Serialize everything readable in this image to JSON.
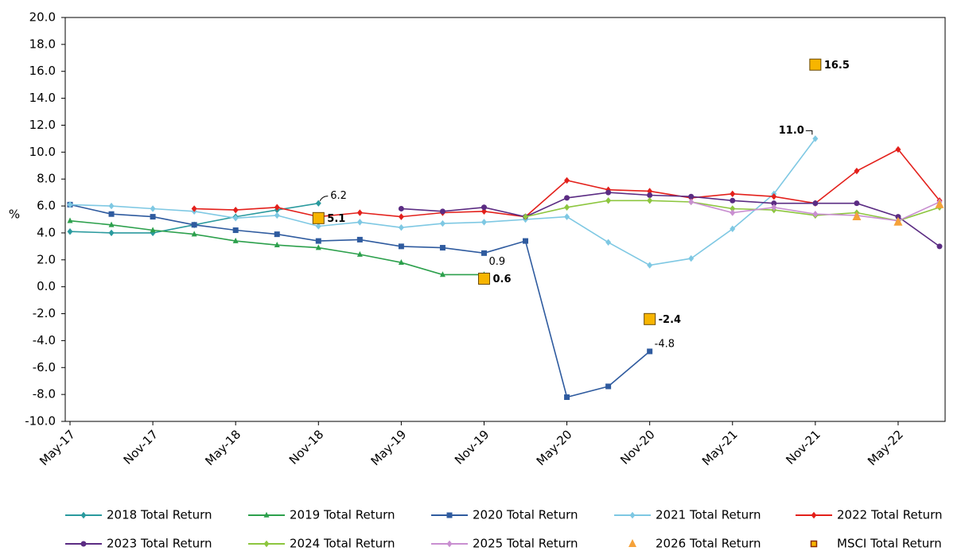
{
  "chart_data": {
    "type": "line",
    "y_label": "%",
    "categories": [
      "May-17",
      null,
      "Nov-17",
      null,
      "May-18",
      null,
      "Nov-18",
      null,
      "May-19",
      null,
      "Nov-19",
      null,
      "May-20",
      null,
      "Nov-20",
      null,
      "May-21",
      null,
      "Nov-21",
      null,
      "May-22",
      null
    ],
    "ylim": [
      -10,
      20
    ],
    "yticks": [
      {
        "value": -10,
        "label": "-10.0"
      },
      {
        "value": -8,
        "label": "-8.0"
      },
      {
        "value": -6,
        "label": "-6.0"
      },
      {
        "value": -4,
        "label": "-4.0"
      },
      {
        "value": -2,
        "label": "-2.0"
      },
      {
        "value": 0,
        "label": "0.0"
      },
      {
        "value": 2,
        "label": "2.0"
      },
      {
        "value": 4,
        "label": "4.0"
      },
      {
        "value": 6,
        "label": "6.0"
      },
      {
        "value": 8,
        "label": "8.0"
      },
      {
        "value": 10,
        "label": "10.0"
      },
      {
        "value": 12,
        "label": "12.0"
      },
      {
        "value": 14,
        "label": "14.0"
      },
      {
        "value": 16,
        "label": "16.0"
      },
      {
        "value": 18,
        "label": "18.0"
      },
      {
        "value": 20,
        "label": "20.0"
      }
    ],
    "grid": false,
    "legend": "bottom",
    "series": [
      {
        "name": "2018 Total Return",
        "color": "#2a9a9e",
        "marker": "diamond",
        "line": true,
        "values": [
          4.1,
          4.0,
          4.0,
          4.6,
          5.2,
          5.7,
          6.2,
          null,
          null,
          null,
          null,
          null,
          null,
          null,
          null,
          null,
          null,
          null,
          null,
          null,
          null,
          null
        ],
        "value_labels": [
          null,
          null,
          null,
          null,
          null,
          null,
          "6.2",
          null,
          null,
          null,
          null,
          null,
          null,
          null,
          null,
          null,
          null,
          null,
          null,
          null,
          null,
          null
        ]
      },
      {
        "name": "2019 Total Return",
        "color": "#2ca04c",
        "marker": "triangle",
        "line": true,
        "values": [
          4.9,
          4.6,
          4.2,
          3.9,
          3.4,
          3.1,
          2.9,
          2.4,
          1.8,
          0.9,
          0.9,
          null,
          null,
          null,
          null,
          null,
          null,
          null,
          null,
          null,
          null,
          null
        ],
        "value_labels": [
          null,
          null,
          null,
          null,
          null,
          null,
          null,
          null,
          null,
          null,
          "0.9",
          null,
          null,
          null,
          null,
          null,
          null,
          null,
          null,
          null,
          null,
          null
        ]
      },
      {
        "name": "2020 Total Return",
        "color": "#2f5b9f",
        "marker": "square",
        "line": true,
        "values": [
          6.1,
          5.4,
          5.2,
          4.6,
          4.2,
          3.9,
          3.4,
          3.5,
          3.0,
          2.9,
          2.5,
          3.4,
          -8.2,
          -7.4,
          -4.8,
          null,
          null,
          null,
          null,
          null,
          null,
          null
        ],
        "value_labels": [
          null,
          null,
          null,
          null,
          null,
          null,
          null,
          null,
          null,
          null,
          null,
          null,
          null,
          null,
          "-4.8",
          null,
          null,
          null,
          null,
          null,
          null,
          null
        ]
      },
      {
        "name": "2021 Total Return",
        "color": "#7ec8e3",
        "marker": "diamond",
        "line": true,
        "values": [
          6.1,
          6.0,
          5.8,
          5.6,
          5.1,
          5.3,
          4.5,
          4.8,
          4.4,
          4.7,
          4.8,
          5.0,
          5.2,
          3.3,
          1.6,
          2.1,
          4.3,
          6.9,
          11.0,
          null,
          null,
          null
        ],
        "value_labels": [
          null,
          null,
          null,
          null,
          null,
          null,
          null,
          null,
          null,
          null,
          null,
          null,
          null,
          null,
          null,
          null,
          null,
          null,
          "11.0",
          null,
          null,
          null
        ]
      },
      {
        "name": "2022 Total Return",
        "color": "#e3201b",
        "marker": "diamond",
        "line": true,
        "values": [
          null,
          null,
          null,
          5.8,
          5.7,
          5.9,
          5.2,
          5.5,
          5.2,
          5.5,
          5.6,
          5.2,
          7.9,
          7.2,
          7.1,
          6.6,
          6.9,
          6.7,
          6.2,
          8.6,
          10.2,
          6.4
        ]
      },
      {
        "name": "2023 Total Return",
        "color": "#5b2c83",
        "marker": "circle",
        "line": true,
        "values": [
          null,
          null,
          null,
          null,
          null,
          null,
          null,
          null,
          5.8,
          5.6,
          5.9,
          5.2,
          6.6,
          7.0,
          6.8,
          6.7,
          6.4,
          6.2,
          6.2,
          6.2,
          5.2,
          3.0
        ]
      },
      {
        "name": "2024 Total Return",
        "color": "#8dc63f",
        "marker": "diamond",
        "line": true,
        "values": [
          null,
          null,
          null,
          null,
          null,
          null,
          null,
          null,
          null,
          null,
          null,
          5.2,
          5.9,
          6.4,
          6.4,
          6.3,
          5.8,
          5.7,
          5.3,
          5.5,
          4.9,
          5.9
        ]
      },
      {
        "name": "2025 Total Return",
        "color": "#c98fd1",
        "marker": "diamond",
        "line": true,
        "values": [
          null,
          null,
          null,
          null,
          null,
          null,
          null,
          null,
          null,
          null,
          null,
          null,
          null,
          null,
          null,
          6.3,
          5.5,
          5.9,
          5.4,
          5.3,
          4.9,
          6.3
        ]
      },
      {
        "name": "2026 Total Return",
        "color": "#f5a23a",
        "marker": "triangle",
        "line": false,
        "values": [
          null,
          null,
          null,
          null,
          null,
          null,
          null,
          null,
          null,
          null,
          null,
          null,
          null,
          null,
          null,
          null,
          null,
          null,
          null,
          5.2,
          4.8,
          6.1
        ]
      },
      {
        "name": "MSCI Total Return",
        "color": "#f7b500",
        "marker": "square",
        "line": false,
        "values": [
          null,
          null,
          null,
          null,
          null,
          null,
          5.1,
          null,
          null,
          null,
          0.6,
          null,
          null,
          null,
          -2.4,
          null,
          null,
          null,
          16.5,
          null,
          null,
          null
        ],
        "value_labels": [
          null,
          null,
          null,
          null,
          null,
          null,
          "5.1",
          null,
          null,
          null,
          "0.6",
          null,
          null,
          null,
          "-2.4",
          null,
          null,
          null,
          "16.5",
          null,
          null,
          null
        ]
      }
    ]
  }
}
